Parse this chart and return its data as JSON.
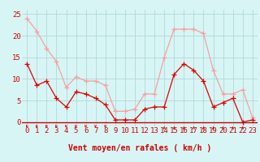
{
  "x": [
    0,
    1,
    2,
    3,
    4,
    5,
    6,
    7,
    8,
    9,
    10,
    11,
    12,
    13,
    14,
    15,
    16,
    17,
    18,
    19,
    20,
    21,
    22,
    23
  ],
  "y_rafales": [
    24,
    21,
    17,
    14,
    8,
    10.5,
    9.5,
    9.5,
    8.5,
    2.5,
    2.5,
    3,
    6.5,
    6.5,
    15,
    21.5,
    21.5,
    21.5,
    20.5,
    12,
    6.5,
    6.5,
    7.5,
    1
  ],
  "y_moyen": [
    13.5,
    8.5,
    9.5,
    5.5,
    3.5,
    7,
    6.5,
    5.5,
    4,
    0.5,
    0.5,
    0.5,
    3,
    3.5,
    3.5,
    11,
    13.5,
    12,
    9.5,
    3.5,
    4.5,
    5.5,
    0,
    0.5
  ],
  "color_rafales": "#f4a0a0",
  "color_moyen": "#dd0000",
  "background_color": "#d8f5f5",
  "grid_color": "#b0d8d8",
  "axis_color": "#cc0000",
  "xlabel": "Vent moyen/en rafales ( km/h )",
  "ylabel_ticks": [
    0,
    5,
    10,
    15,
    20,
    25
  ],
  "ylim": [
    -1,
    26
  ],
  "xlim": [
    -0.5,
    23.5
  ],
  "arrow_down_indices": [
    0,
    1,
    2,
    3,
    4,
    5,
    6,
    7,
    8
  ],
  "arrow_up_indices": [
    14,
    15,
    16,
    17,
    18,
    19,
    20,
    21,
    22
  ],
  "label_fontsize": 7,
  "tick_fontsize": 6.5,
  "marker_size": 4,
  "line_width": 0.9
}
